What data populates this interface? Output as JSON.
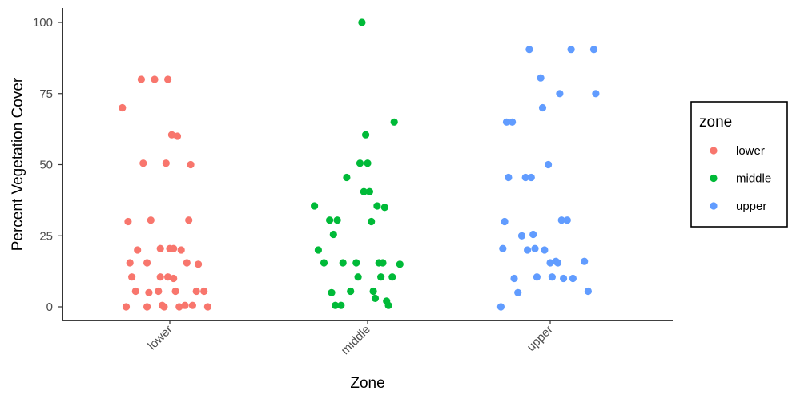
{
  "chart_data": {
    "type": "scatter",
    "xlabel": "Zone",
    "ylabel": "Percent Vegetation Cover",
    "categories": [
      "lower",
      "middle",
      "upper"
    ],
    "yticks": [
      0,
      25,
      50,
      75,
      100
    ],
    "ylim": [
      -2.5,
      105
    ],
    "grid": false,
    "legend": {
      "title": "zone",
      "position": "right"
    },
    "series": [
      {
        "name": "lower",
        "color": "#F8766D",
        "x": [
          -0.25,
          -0.23,
          -0.22,
          -0.21,
          -0.2,
          -0.18,
          -0.17,
          -0.15,
          -0.14,
          -0.12,
          -0.12,
          -0.11,
          -0.1,
          -0.08,
          -0.06,
          -0.05,
          -0.05,
          -0.04,
          -0.03,
          -0.02,
          -0.01,
          -0.01,
          0.0,
          0.01,
          0.02,
          0.02,
          0.03,
          0.04,
          0.05,
          0.06,
          0.08,
          0.09,
          0.1,
          0.11,
          0.12,
          0.14,
          0.15,
          0.18,
          0.2
        ],
        "y": [
          70,
          0,
          30,
          15.5,
          10.5,
          5.5,
          20,
          80,
          50.5,
          0,
          15.5,
          5,
          30.5,
          80,
          5.5,
          10.5,
          20.5,
          0.5,
          0,
          50.5,
          10.5,
          80,
          20.5,
          60.5,
          20.5,
          10,
          5.5,
          60,
          0,
          20,
          0.5,
          15.5,
          30.5,
          50,
          0.5,
          5.5,
          15,
          5.5,
          0
        ]
      },
      {
        "name": "middle",
        "color": "#00BA38",
        "x": [
          -0.28,
          -0.26,
          -0.23,
          -0.2,
          -0.19,
          -0.18,
          -0.17,
          -0.16,
          -0.14,
          -0.13,
          -0.11,
          -0.09,
          -0.06,
          -0.05,
          -0.04,
          -0.03,
          -0.02,
          -0.01,
          0.0,
          0.01,
          0.02,
          0.03,
          0.04,
          0.05,
          0.06,
          0.07,
          0.08,
          0.09,
          0.1,
          0.11,
          0.13,
          0.14,
          0.17
        ],
        "y": [
          35.5,
          20,
          15.5,
          30.5,
          5,
          25.5,
          0.5,
          30.5,
          0.5,
          15.5,
          45.5,
          5.5,
          15.5,
          10.5,
          50.5,
          100,
          40.5,
          60.5,
          50.5,
          40.5,
          30,
          5.5,
          3,
          35.5,
          15.5,
          10.5,
          15.5,
          35,
          2,
          0.5,
          10.5,
          65,
          15
        ]
      },
      {
        "name": "upper",
        "color": "#619CFF",
        "x": [
          -0.26,
          -0.25,
          -0.24,
          -0.23,
          -0.22,
          -0.2,
          -0.19,
          -0.17,
          -0.15,
          -0.13,
          -0.12,
          -0.11,
          -0.1,
          -0.09,
          -0.08,
          -0.07,
          -0.05,
          -0.04,
          -0.03,
          -0.01,
          0.0,
          0.01,
          0.03,
          0.04,
          0.05,
          0.06,
          0.07,
          0.09,
          0.11,
          0.12,
          0.18,
          0.2,
          0.23,
          0.24
        ],
        "y": [
          0,
          20.5,
          30,
          65,
          45.5,
          65,
          10,
          5,
          25,
          45.5,
          20,
          90.5,
          45.5,
          25.5,
          20.5,
          10.5,
          80.5,
          70,
          20,
          50,
          15.5,
          10.5,
          16,
          15.5,
          75,
          30.5,
          10,
          30.5,
          90.5,
          10,
          16,
          5.5,
          90.5,
          75
        ]
      }
    ]
  }
}
